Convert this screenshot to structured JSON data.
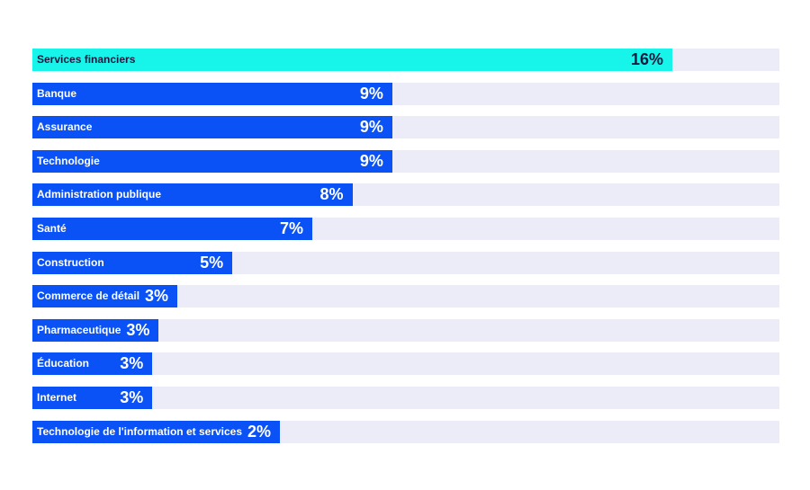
{
  "chart_data": {
    "type": "bar",
    "orientation": "horizontal",
    "title": "",
    "xlabel": "",
    "ylabel": "",
    "xlim": [
      0,
      18
    ],
    "categories": [
      "Services financiers",
      "Banque",
      "Assurance",
      "Technologie",
      "Administration publique",
      "Santé",
      "Construction",
      "Commerce de détail",
      "Pharmaceutique",
      "Éducation",
      "Internet",
      "Technologie de l'information et services"
    ],
    "values": [
      16,
      9,
      9,
      9,
      8,
      7,
      5,
      3,
      3,
      3,
      3,
      2
    ],
    "value_labels": [
      "16%",
      "9%",
      "9%",
      "9%",
      "8%",
      "7%",
      "5%",
      "3%",
      "3%",
      "3%",
      "3%",
      "2%"
    ],
    "colors": {
      "highlight": "#17f4ea",
      "bar": "#0a52f5",
      "track": "#ecebf8",
      "highlight_text": "#1a1a3e",
      "text": "#ffffff"
    },
    "highlighted_index": 0,
    "grid": false,
    "legend": "none"
  }
}
